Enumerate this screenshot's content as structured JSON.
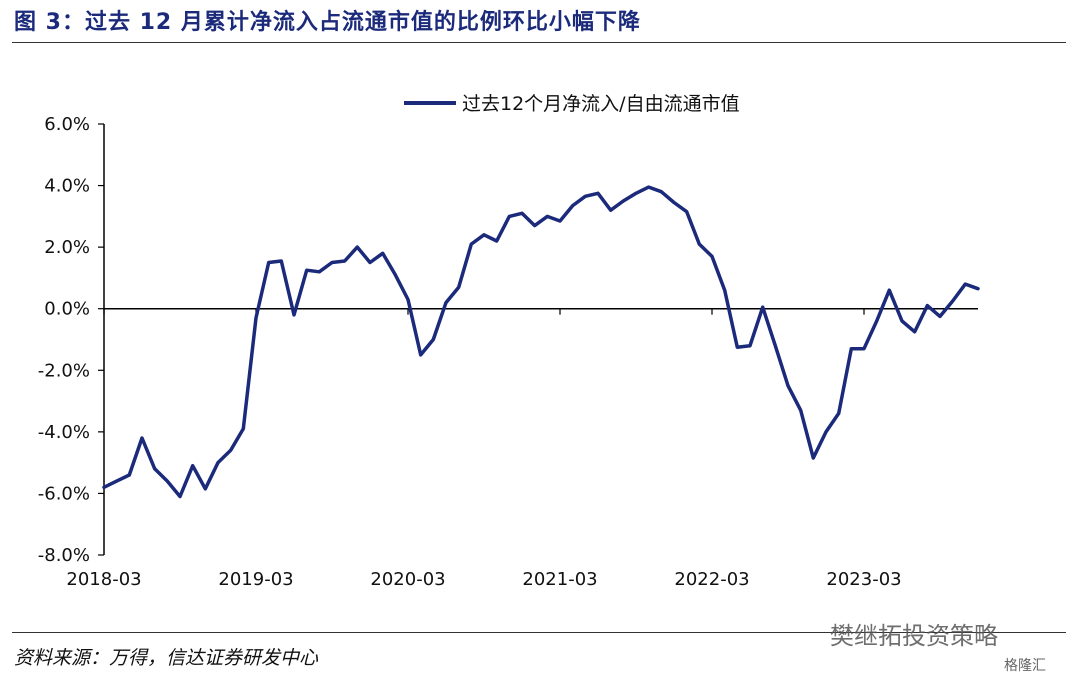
{
  "title": "图 3：过去 12 月累计净流入占流通市值的比例环比小幅下降",
  "source": "资料来源：万得，信达证券研发中心",
  "watermark": "樊继拓投资策略",
  "watermark_small": "格隆汇",
  "colors": {
    "series": "#1b2a7a",
    "axis": "#000000",
    "title": "#1b2a7a"
  },
  "chart_data": {
    "type": "line",
    "ylim": [
      -8.0,
      6.0
    ],
    "yticks": [
      -8.0,
      -6.0,
      -4.0,
      -2.0,
      0.0,
      2.0,
      4.0,
      6.0
    ],
    "ytick_labels": [
      "-8.0%",
      "-6.0%",
      "-4.0%",
      "-2.0%",
      "0.0%",
      "2.0%",
      "4.0%",
      "6.0%"
    ],
    "xtick_labels": [
      "2018-03",
      "2019-03",
      "2020-03",
      "2021-03",
      "2022-03",
      "2023-03"
    ],
    "legend_position": "top-center",
    "series": [
      {
        "name": "过去12个月净流入/自由流通市值",
        "values": [
          -5.8,
          -5.6,
          -5.4,
          -4.2,
          -5.2,
          -5.6,
          -6.1,
          -5.1,
          -5.85,
          -5.0,
          -4.6,
          -3.9,
          -0.3,
          1.5,
          1.55,
          -0.2,
          1.25,
          1.2,
          1.5,
          1.55,
          2.0,
          1.5,
          1.8,
          1.1,
          0.3,
          -1.5,
          -1.0,
          0.2,
          0.7,
          2.1,
          2.4,
          2.2,
          3.0,
          3.1,
          2.7,
          3.0,
          2.85,
          3.35,
          3.65,
          3.75,
          3.2,
          3.5,
          3.75,
          3.95,
          3.8,
          3.45,
          3.15,
          2.1,
          1.7,
          0.6,
          -1.25,
          -1.2,
          0.05,
          -1.2,
          -2.5,
          -3.3,
          -4.85,
          -4.0,
          -3.4,
          -1.3,
          -1.3,
          -0.4,
          0.6,
          -0.4,
          -0.75,
          0.1,
          -0.25,
          0.25,
          0.8,
          0.65
        ]
      }
    ]
  }
}
